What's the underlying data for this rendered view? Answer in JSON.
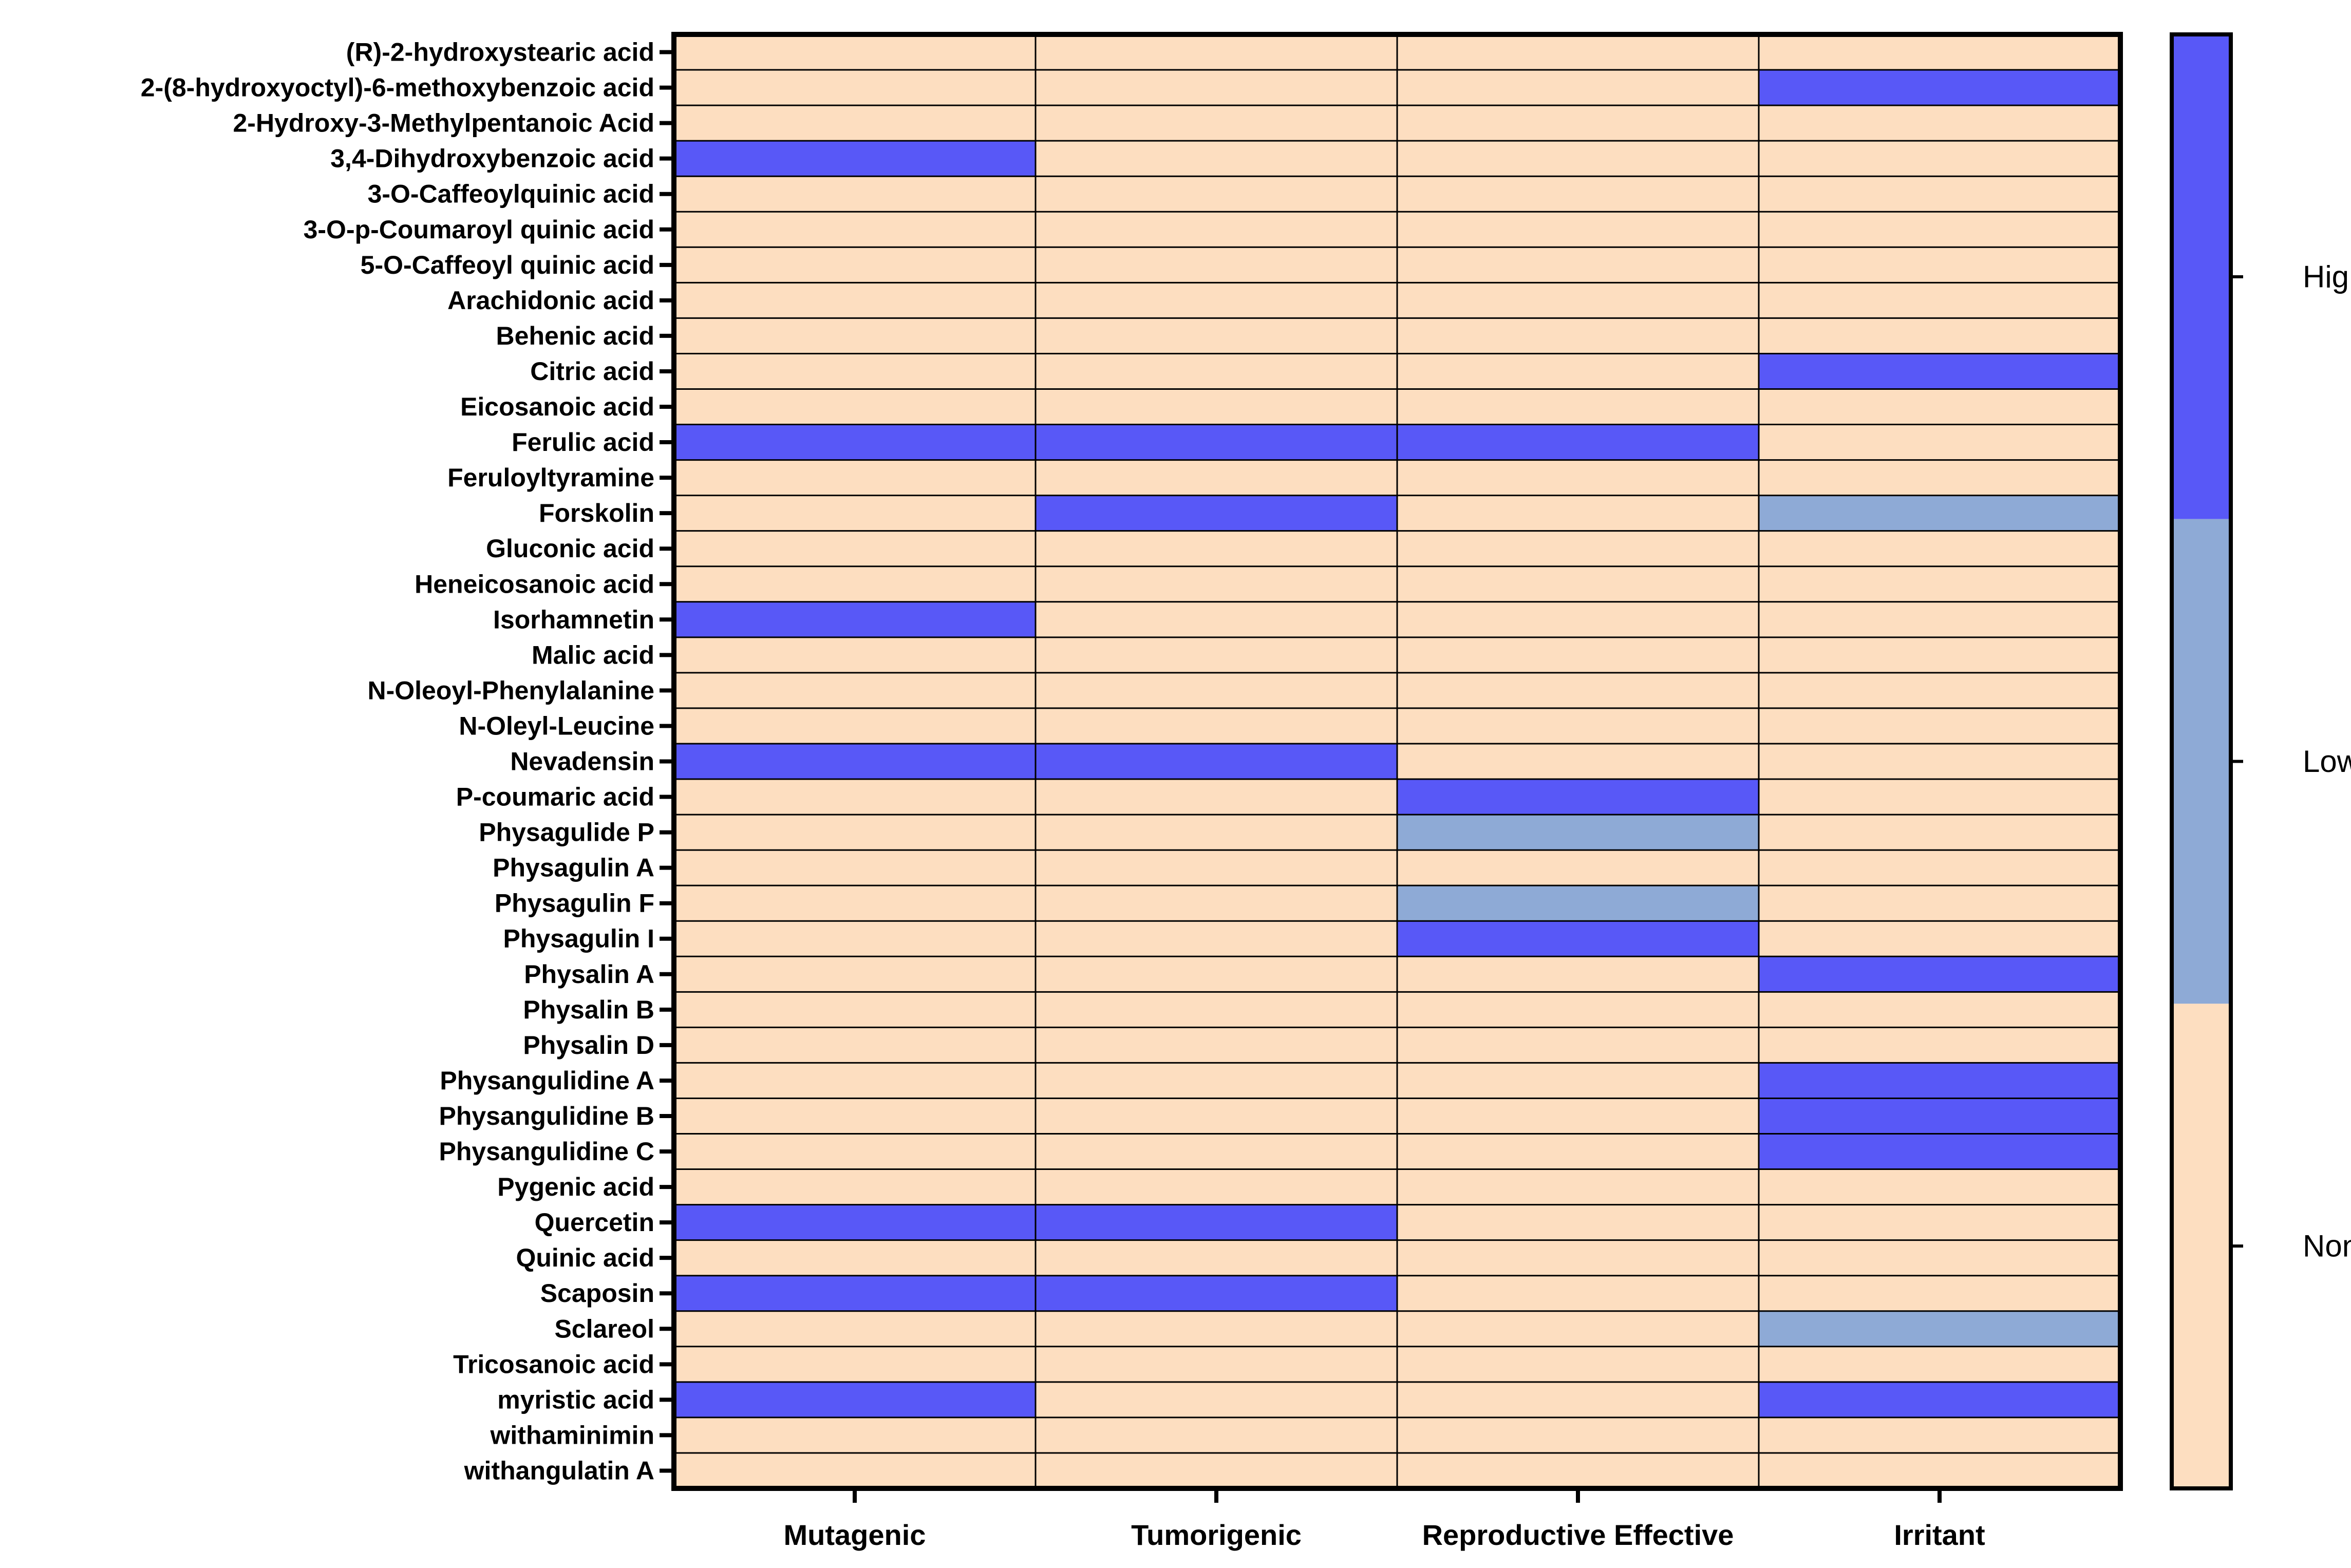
{
  "chart_data": {
    "type": "heatmap",
    "columns": [
      "Mutagenic",
      "Tumorigenic",
      "Reproductive Effective",
      "Irritant"
    ],
    "rows": [
      "(R)-2-hydroxystearic acid",
      "2-(8-hydroxyoctyl)-6-methoxybenzoic acid",
      "2-Hydroxy-3-Methylpentanoic Acid",
      "3,4-Dihydroxybenzoic acid",
      "3-O-Caffeoylquinic acid",
      "3-O-p-Coumaroyl quinic acid",
      "5-O-Caffeoyl quinic acid",
      "Arachidonic acid",
      "Behenic acid",
      "Citric acid",
      "Eicosanoic acid",
      "Ferulic acid",
      "Feruloyltyramine",
      "Forskolin",
      "Gluconic acid",
      "Heneicosanoic acid",
      "Isorhamnetin",
      "Malic acid",
      "N-Oleoyl-Phenylalanine",
      "N-Oleyl-Leucine",
      "Nevadensin",
      "P-coumaric acid",
      "Physagulide P",
      "Physagulin A",
      "Physagulin F",
      "Physagulin I",
      "Physalin A",
      "Physalin B",
      "Physalin D",
      "Physangulidine A",
      "Physangulidine B",
      "Physangulidine C",
      "Pygenic acid",
      "Quercetin",
      "Quinic acid",
      "Scaposin",
      "Sclareol",
      "Tricosanoic acid",
      "myristic acid",
      "withaminimin",
      "withangulatin A"
    ],
    "levels": [
      "None",
      "Low",
      "High"
    ],
    "level_colors": {
      "None": "#fddec0",
      "Low": "#8eaad6",
      "High": "#5858f7"
    },
    "values": [
      [
        "None",
        "None",
        "None",
        "None"
      ],
      [
        "None",
        "None",
        "None",
        "High"
      ],
      [
        "None",
        "None",
        "None",
        "None"
      ],
      [
        "High",
        "None",
        "None",
        "None"
      ],
      [
        "None",
        "None",
        "None",
        "None"
      ],
      [
        "None",
        "None",
        "None",
        "None"
      ],
      [
        "None",
        "None",
        "None",
        "None"
      ],
      [
        "None",
        "None",
        "None",
        "None"
      ],
      [
        "None",
        "None",
        "None",
        "None"
      ],
      [
        "None",
        "None",
        "None",
        "High"
      ],
      [
        "None",
        "None",
        "None",
        "None"
      ],
      [
        "High",
        "High",
        "High",
        "None"
      ],
      [
        "None",
        "None",
        "None",
        "None"
      ],
      [
        "None",
        "High",
        "None",
        "Low"
      ],
      [
        "None",
        "None",
        "None",
        "None"
      ],
      [
        "None",
        "None",
        "None",
        "None"
      ],
      [
        "High",
        "None",
        "None",
        "None"
      ],
      [
        "None",
        "None",
        "None",
        "None"
      ],
      [
        "None",
        "None",
        "None",
        "None"
      ],
      [
        "None",
        "None",
        "None",
        "None"
      ],
      [
        "High",
        "High",
        "None",
        "None"
      ],
      [
        "None",
        "None",
        "High",
        "None"
      ],
      [
        "None",
        "None",
        "Low",
        "None"
      ],
      [
        "None",
        "None",
        "None",
        "None"
      ],
      [
        "None",
        "None",
        "Low",
        "None"
      ],
      [
        "None",
        "None",
        "High",
        "None"
      ],
      [
        "None",
        "None",
        "None",
        "High"
      ],
      [
        "None",
        "None",
        "None",
        "None"
      ],
      [
        "None",
        "None",
        "None",
        "None"
      ],
      [
        "None",
        "None",
        "None",
        "High"
      ],
      [
        "None",
        "None",
        "None",
        "High"
      ],
      [
        "None",
        "None",
        "None",
        "High"
      ],
      [
        "None",
        "None",
        "None",
        "None"
      ],
      [
        "High",
        "High",
        "None",
        "None"
      ],
      [
        "None",
        "None",
        "None",
        "None"
      ],
      [
        "High",
        "High",
        "None",
        "None"
      ],
      [
        "None",
        "None",
        "None",
        "Low"
      ],
      [
        "None",
        "None",
        "None",
        "None"
      ],
      [
        "High",
        "None",
        "None",
        "High"
      ],
      [
        "None",
        "None",
        "None",
        "None"
      ],
      [
        "None",
        "None",
        "None",
        "None"
      ]
    ],
    "legend": {
      "position": "right",
      "labels": [
        "High",
        "Low",
        "None"
      ]
    }
  }
}
